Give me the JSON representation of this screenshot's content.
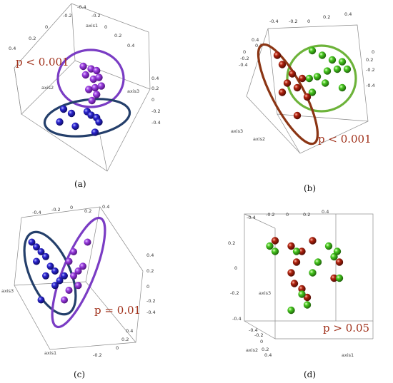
{
  "colors": {
    "purple": "#8e2fd0",
    "blue": "#2421c0",
    "green": "#3fc21c",
    "red": "#a0210f",
    "ellipse_purple": "#7a3cc4",
    "ellipse_navy": "#243f6b",
    "ellipse_green": "#6db33a",
    "ellipse_brown": "#8b3514",
    "p_text": "#a0301a",
    "box": "#8a8a8a"
  },
  "chart_data": [
    {
      "type": "scatter",
      "panel_label": "(a)",
      "p_value_text": "p < 0.001",
      "axis_labels": [
        "axis1",
        "axis2",
        "axis3"
      ],
      "ticks": {
        "axis1": [
          "-0.4",
          "-0.2",
          "0",
          "0.2",
          "0.4"
        ],
        "left": [
          "-0.4",
          "-0.2",
          "0",
          "0.2",
          "0.4"
        ],
        "right": [
          "0.4",
          "0.2",
          "0",
          "-0.2",
          "-0.4"
        ]
      },
      "series": [
        {
          "color": "purple",
          "points": [
            [
              -0.05,
              0.35
            ],
            [
              0.05,
              0.32
            ],
            [
              0.12,
              0.3
            ],
            [
              -0.02,
              0.25
            ],
            [
              0.08,
              0.2
            ],
            [
              0.15,
              0.22
            ],
            [
              0.1,
              0.1
            ],
            [
              0.02,
              0.08
            ],
            [
              0.18,
              0.12
            ],
            [
              0.12,
              0.02
            ],
            [
              0.06,
              -0.05
            ]
          ]
        },
        {
          "color": "blue",
          "points": [
            [
              -0.3,
              -0.15
            ],
            [
              -0.2,
              -0.2
            ],
            [
              0.0,
              -0.18
            ],
            [
              0.05,
              -0.22
            ],
            [
              0.12,
              -0.25
            ],
            [
              0.15,
              -0.3
            ],
            [
              -0.15,
              -0.35
            ],
            [
              0.1,
              -0.42
            ],
            [
              -0.35,
              -0.3
            ]
          ]
        }
      ]
    },
    {
      "type": "scatter",
      "panel_label": "(b)",
      "p_value_text": "p < 0.001",
      "axis_labels": [
        "axis2",
        "axis3"
      ],
      "ticks": {
        "top": [
          "-0.4",
          "-0.2",
          "0",
          "0.2",
          "0.4"
        ],
        "left": [
          "-0.4",
          "-0.2",
          "0",
          "0.2",
          "0.4"
        ],
        "right": [
          "0",
          "0.2",
          "-0.2",
          "-0.4"
        ]
      },
      "series": [
        {
          "color": "green",
          "points": [
            [
              0.05,
              0.3
            ],
            [
              0.15,
              0.25
            ],
            [
              0.25,
              0.2
            ],
            [
              0.35,
              0.18
            ],
            [
              0.3,
              0.1
            ],
            [
              0.2,
              0.08
            ],
            [
              0.1,
              0.02
            ],
            [
              0.02,
              0.0
            ],
            [
              0.18,
              -0.05
            ],
            [
              0.4,
              0.1
            ],
            [
              0.35,
              -0.1
            ],
            [
              0.05,
              -0.15
            ]
          ]
        },
        {
          "color": "red",
          "points": [
            [
              -0.3,
              0.25
            ],
            [
              -0.25,
              0.15
            ],
            [
              -0.15,
              0.05
            ],
            [
              -0.05,
              0.0
            ],
            [
              -0.1,
              -0.1
            ],
            [
              -0.2,
              -0.05
            ],
            [
              -0.25,
              -0.15
            ],
            [
              0.0,
              -0.2
            ],
            [
              -0.1,
              -0.4
            ]
          ]
        }
      ]
    },
    {
      "type": "scatter",
      "panel_label": "(c)",
      "p_value_text": "p = 0.01",
      "axis_labels": [
        "axis3",
        "axis1"
      ],
      "ticks": {
        "top": [
          "-0.4",
          "-0.2",
          "0",
          "0.2",
          "0.4"
        ],
        "right": [
          "0.4",
          "0.2",
          "0",
          "-0.2",
          "-0.4"
        ],
        "bottom": [
          "0.4",
          "0.2",
          "0",
          "-0.2"
        ]
      },
      "series": [
        {
          "color": "blue",
          "points": [
            [
              -0.35,
              0.3
            ],
            [
              -0.3,
              0.25
            ],
            [
              -0.25,
              0.2
            ],
            [
              -0.2,
              0.15
            ],
            [
              -0.3,
              0.1
            ],
            [
              -0.15,
              0.05
            ],
            [
              -0.1,
              0.0
            ],
            [
              -0.2,
              -0.05
            ],
            [
              -0.05,
              -0.1
            ],
            [
              -0.1,
              -0.15
            ],
            [
              0.0,
              -0.05
            ],
            [
              -0.25,
              -0.3
            ]
          ]
        },
        {
          "color": "purple",
          "points": [
            [
              0.1,
              0.2
            ],
            [
              0.05,
              0.1
            ],
            [
              0.15,
              0.0
            ],
            [
              0.1,
              -0.05
            ],
            [
              0.2,
              0.05
            ],
            [
              0.05,
              -0.2
            ],
            [
              0.15,
              -0.15
            ],
            [
              0.0,
              -0.3
            ],
            [
              0.25,
              0.3
            ]
          ]
        }
      ]
    },
    {
      "type": "scatter",
      "panel_label": "(d)",
      "p_value_text": "p > 0.05",
      "axis_labels": [
        "axis3",
        "axis2",
        "axis1"
      ],
      "ticks": {
        "top": [
          "-0.4",
          "-0.2",
          "0",
          "0.2",
          "0.4"
        ],
        "left": [
          "0.2",
          "0",
          "-0.2",
          "-0.4"
        ],
        "depth": [
          "-0.4",
          "-0.2",
          "0",
          "0.2",
          "0.4"
        ]
      },
      "series": [
        {
          "color": "red",
          "points": [
            [
              -0.3,
              0.25
            ],
            [
              -0.15,
              0.2
            ],
            [
              -0.05,
              0.15
            ],
            [
              0.05,
              0.25
            ],
            [
              -0.1,
              0.05
            ],
            [
              -0.15,
              -0.05
            ],
            [
              -0.12,
              -0.15
            ],
            [
              -0.05,
              -0.2
            ],
            [
              0.0,
              -0.28
            ],
            [
              0.25,
              -0.1
            ],
            [
              0.3,
              0.05
            ]
          ]
        },
        {
          "color": "green",
          "points": [
            [
              -0.35,
              0.2
            ],
            [
              -0.3,
              0.15
            ],
            [
              -0.1,
              0.15
            ],
            [
              0.2,
              0.2
            ],
            [
              0.25,
              0.1
            ],
            [
              0.28,
              0.15
            ],
            [
              0.1,
              0.05
            ],
            [
              0.05,
              -0.05
            ],
            [
              -0.05,
              -0.25
            ],
            [
              0.0,
              -0.35
            ],
            [
              -0.15,
              -0.4
            ],
            [
              0.3,
              -0.1
            ]
          ]
        }
      ]
    }
  ]
}
